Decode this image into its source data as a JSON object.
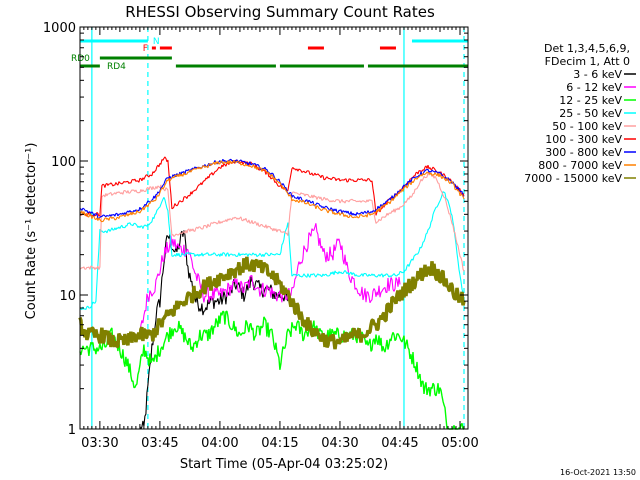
{
  "chart_data": {
    "type": "line",
    "title": "RHESSI Observing Summary Count Rates",
    "xlabel": "Start Time (05-Apr-04 03:25:02)",
    "ylabel": "Count Rate (s⁻¹ detector⁻¹)",
    "yscale": "log",
    "ylim": [
      1,
      1000
    ],
    "xlim": [
      "03:25:02",
      "05:02:00"
    ],
    "x_tick_labels": [
      "03:30",
      "03:45",
      "04:00",
      "04:15",
      "04:30",
      "04:45",
      "05:00"
    ],
    "y_tick_labels": [
      "1",
      "10",
      "100",
      "1000"
    ],
    "grid": false,
    "legend_position": "right",
    "legend_header": [
      "Det 1,3,4,5,6,9,",
      "FDecim 1, Att 0"
    ],
    "series": [
      {
        "name": "3 - 6 keV",
        "color": "#000000",
        "x": [
          "03:40",
          "03:41",
          "03:42",
          "03:43",
          "03:44",
          "03:45",
          "03:46",
          "03:47",
          "03:48",
          "03:49",
          "03:50",
          "03:51",
          "03:52",
          "03:54",
          "03:56",
          "03:58",
          "04:00",
          "04:02",
          "04:04",
          "04:06",
          "04:08",
          "04:10",
          "04:12",
          "04:14",
          "04:16",
          "04:17"
        ],
        "y": [
          1,
          1,
          2,
          4,
          7,
          9,
          18,
          28,
          24,
          20,
          25,
          30,
          16,
          9,
          8,
          9,
          9,
          10,
          12,
          10,
          13,
          11,
          11,
          10,
          10,
          9
        ]
      },
      {
        "name": "6 - 12 keV",
        "color": "#ff00ff",
        "x": [
          "03:40",
          "03:42",
          "03:44",
          "03:46",
          "03:48",
          "03:50",
          "03:52",
          "03:54",
          "03:56",
          "03:58",
          "04:00",
          "04:02",
          "04:04",
          "04:06",
          "04:08",
          "04:10",
          "04:12",
          "04:14",
          "04:16",
          "04:18",
          "04:20",
          "04:22",
          "04:24",
          "04:26",
          "04:28",
          "04:30",
          "04:32",
          "04:34",
          "04:36",
          "04:38",
          "04:40",
          "04:42",
          "04:44",
          "04:45"
        ],
        "y": [
          5,
          10,
          12,
          20,
          25,
          22,
          22,
          14,
          10,
          10,
          10,
          11,
          12,
          11,
          13,
          11,
          11,
          10,
          10,
          10,
          18,
          25,
          30,
          20,
          20,
          25,
          15,
          12,
          10,
          10,
          11,
          12,
          12,
          12
        ]
      },
      {
        "name": "12 - 25 keV",
        "color": "#00ff00",
        "x": [
          "03:25",
          "03:27",
          "03:29",
          "03:31",
          "03:33",
          "03:35",
          "03:37",
          "03:39",
          "03:41",
          "03:43",
          "03:45",
          "03:47",
          "03:49",
          "03:51",
          "03:53",
          "03:55",
          "03:57",
          "03:59",
          "04:01",
          "04:03",
          "04:05",
          "04:07",
          "04:09",
          "04:11",
          "04:13",
          "04:15",
          "04:17",
          "04:19",
          "04:21",
          "04:23",
          "04:25",
          "04:27",
          "04:29",
          "04:31",
          "04:33",
          "04:35",
          "04:37",
          "04:39",
          "04:41",
          "04:43",
          "04:45",
          "04:47",
          "04:49",
          "04:51",
          "04:53",
          "04:55",
          "04:57",
          "04:59",
          "05:01"
        ],
        "y": [
          4,
          4,
          4,
          4,
          5,
          4,
          3,
          2,
          4,
          3,
          4,
          5,
          6,
          5,
          4,
          5,
          5,
          6,
          7,
          6,
          5,
          6,
          5,
          6,
          5,
          3,
          5,
          6,
          5,
          6,
          5,
          5,
          5,
          5,
          5,
          5,
          4,
          5,
          4,
          5,
          5,
          4,
          3,
          2,
          2,
          2,
          1,
          1,
          1
        ]
      },
      {
        "name": "25 - 50 keV",
        "color": "#00ffff",
        "x": [
          "03:25",
          "03:27",
          "03:29",
          "03:30",
          "03:32",
          "03:35",
          "03:38",
          "03:40",
          "03:42",
          "03:44",
          "03:46",
          "03:47",
          "03:48",
          "03:50",
          "03:55",
          "04:00",
          "04:05",
          "04:10",
          "04:15",
          "04:17",
          "04:18",
          "04:22",
          "04:26",
          "04:30",
          "04:35",
          "04:38",
          "04:40",
          "04:44",
          "04:46",
          "04:48",
          "04:50",
          "04:52",
          "04:54",
          "04:56",
          "04:58",
          "05:00",
          "05:01"
        ],
        "y": [
          8,
          8,
          9,
          30,
          30,
          32,
          34,
          32,
          33,
          40,
          55,
          42,
          20,
          20,
          20,
          20,
          20,
          20,
          20,
          35,
          14,
          14,
          14,
          15,
          14,
          14,
          14,
          14,
          15,
          18,
          22,
          30,
          45,
          60,
          40,
          14,
          9
        ]
      },
      {
        "name": "50 - 100 keV",
        "color": "#ffa0a0",
        "x": [
          "03:25",
          "03:30",
          "03:30.5",
          "03:35",
          "03:40",
          "03:45",
          "03:47",
          "03:48",
          "03:52",
          "03:56",
          "04:00",
          "04:04",
          "04:08",
          "04:12",
          "04:15",
          "04:17",
          "04:18",
          "04:22",
          "04:26",
          "04:30",
          "04:34",
          "04:38",
          "04:39",
          "04:42",
          "04:45",
          "04:48",
          "04:50",
          "04:52",
          "04:54",
          "04:56",
          "04:58",
          "05:00",
          "05:01"
        ],
        "y": [
          16,
          16,
          55,
          58,
          60,
          65,
          60,
          28,
          30,
          32,
          35,
          38,
          35,
          32,
          30,
          28,
          58,
          55,
          52,
          50,
          50,
          50,
          35,
          40,
          45,
          55,
          70,
          80,
          75,
          55,
          35,
          20,
          15
        ]
      },
      {
        "name": "100 - 300 keV",
        "color": "#ff0000",
        "x": [
          "03:25",
          "03:30",
          "03:30.5",
          "03:35",
          "03:40",
          "03:43",
          "03:45",
          "03:46",
          "03:47",
          "03:48",
          "03:52",
          "03:56",
          "04:00",
          "04:04",
          "04:08",
          "04:12",
          "04:15",
          "04:17",
          "04:18",
          "04:22",
          "04:26",
          "04:30",
          "04:34",
          "04:38",
          "04:39",
          "04:42",
          "04:45",
          "04:48",
          "04:50",
          "04:52",
          "04:54",
          "04:56",
          "04:58",
          "05:00",
          "05:01"
        ],
        "y": [
          40,
          40,
          65,
          68,
          72,
          80,
          95,
          105,
          100,
          45,
          55,
          70,
          90,
          100,
          95,
          80,
          65,
          60,
          90,
          82,
          75,
          72,
          72,
          72,
          40,
          50,
          60,
          75,
          85,
          90,
          85,
          78,
          70,
          60,
          55
        ]
      },
      {
        "name": "300 - 800 keV",
        "color": "#0000ff",
        "x": [
          "03:25",
          "03:30",
          "03:35",
          "03:40",
          "03:44",
          "03:47",
          "03:50",
          "03:55",
          "04:00",
          "04:04",
          "04:08",
          "04:12",
          "04:15",
          "04:18",
          "04:22",
          "04:26",
          "04:30",
          "04:34",
          "04:38",
          "04:42",
          "04:46",
          "04:50",
          "04:52",
          "04:55",
          "04:58",
          "05:01"
        ],
        "y": [
          45,
          38,
          40,
          44,
          55,
          75,
          80,
          90,
          100,
          100,
          95,
          85,
          70,
          55,
          50,
          45,
          42,
          40,
          42,
          50,
          65,
          80,
          85,
          80,
          70,
          55
        ]
      },
      {
        "name": "800 - 7000 keV",
        "color": "#ff8000",
        "x": [
          "03:25",
          "03:30",
          "03:35",
          "03:40",
          "03:44",
          "03:47",
          "03:50",
          "03:55",
          "04:00",
          "04:04",
          "04:08",
          "04:12",
          "04:15",
          "04:18",
          "04:22",
          "04:26",
          "04:30",
          "04:34",
          "04:38",
          "04:42",
          "04:46",
          "04:50",
          "04:52",
          "04:55",
          "04:58",
          "05:01"
        ],
        "y": [
          42,
          36,
          38,
          42,
          52,
          72,
          78,
          88,
          98,
          98,
          92,
          82,
          68,
          52,
          48,
          43,
          40,
          38,
          40,
          48,
          62,
          78,
          82,
          78,
          68,
          52
        ]
      },
      {
        "name": "7000 - 15000 keV",
        "color": "#808000",
        "x": [
          "03:25",
          "03:27",
          "03:29",
          "03:31",
          "03:33",
          "03:35",
          "03:37",
          "03:39",
          "03:41",
          "03:43",
          "03:45",
          "03:47",
          "03:49",
          "03:51",
          "03:53",
          "03:55",
          "03:57",
          "03:59",
          "04:01",
          "04:03",
          "04:05",
          "04:07",
          "04:09",
          "04:11",
          "04:13",
          "04:15",
          "04:17",
          "04:19",
          "04:21",
          "04:23",
          "04:25",
          "04:27",
          "04:29",
          "04:31",
          "04:33",
          "04:35",
          "04:37",
          "04:39",
          "04:41",
          "04:43",
          "04:45",
          "04:47",
          "04:49",
          "04:51",
          "04:53",
          "04:55",
          "04:57",
          "04:59",
          "05:01"
        ],
        "y": [
          6,
          5,
          5,
          5,
          4.5,
          4.5,
          4.5,
          5,
          5,
          5,
          6,
          7,
          8,
          9,
          10,
          11,
          12,
          13,
          14,
          15,
          16,
          17,
          16.5,
          15.5,
          14,
          12,
          10,
          8,
          6.5,
          5.5,
          5,
          4.5,
          4.5,
          4.5,
          5,
          5,
          5.5,
          6,
          7,
          8.5,
          10,
          11.5,
          13,
          15,
          16,
          14,
          12,
          10,
          9
        ]
      }
    ],
    "annotations": {
      "vertical_lines": [
        {
          "x": "03:28",
          "color": "#00ffff",
          "style": "solid"
        },
        {
          "x": "03:42",
          "color": "#00ffff",
          "style": "dashed"
        },
        {
          "x": "04:46",
          "color": "#00ffff",
          "style": "solid"
        },
        {
          "x": "05:01",
          "color": "#00ffff",
          "style": "dashed"
        }
      ],
      "bars": [
        {
          "label": "",
          "color": "#00ffff",
          "ranges": [
            [
              "03:25",
              "03:42"
            ],
            [
              "04:48",
              "05:02"
            ]
          ],
          "level": 1
        },
        {
          "label": "N",
          "color": "#00ffff",
          "ranges": [],
          "level": 1
        },
        {
          "label": "F",
          "color": "#ff0000",
          "ranges": [
            [
              "03:43",
              "03:44"
            ],
            [
              "03:45",
              "03:48"
            ],
            [
              "04:22",
              "04:26"
            ],
            [
              "04:40",
              "04:44"
            ]
          ],
          "level": 2
        },
        {
          "label": "RD0",
          "color": "#008000",
          "ranges": [
            [
              "03:30",
              "03:48"
            ]
          ],
          "level": 3
        },
        {
          "label": "RD4",
          "color": "#008000",
          "ranges": [
            [
              "03:25",
              "03:30"
            ],
            [
              "03:49",
              "04:14"
            ],
            [
              "04:15",
              "04:36"
            ],
            [
              "04:37",
              "05:02"
            ]
          ],
          "level": 4
        }
      ]
    },
    "footer_date": "16-Oct-2021 13:50"
  }
}
